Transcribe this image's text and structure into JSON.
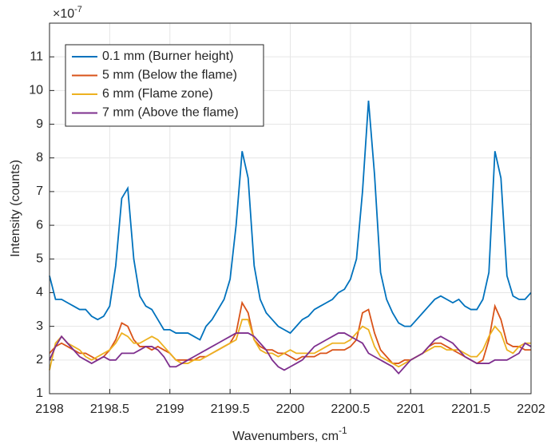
{
  "chart_data": {
    "type": "line",
    "xlabel": "Wavenumbers, cm",
    "xlabel_superscript": "-1",
    "ylabel": "Intensity (counts)",
    "y_multiplier": "×10",
    "y_multiplier_exponent": "-7",
    "xlim": [
      2198,
      2202
    ],
    "xticks": [
      2198,
      2198.5,
      2199,
      2199.5,
      2200,
      2200.5,
      2201,
      2201.5,
      2202
    ],
    "ylim": [
      1,
      12
    ],
    "yticks": [
      1,
      2,
      3,
      4,
      5,
      6,
      7,
      8,
      9,
      10,
      11
    ],
    "grid": true,
    "legend": "top-left",
    "x": [
      2198,
      2198.05,
      2198.1,
      2198.15,
      2198.2,
      2198.25,
      2198.3,
      2198.35,
      2198.4,
      2198.45,
      2198.5,
      2198.55,
      2198.6,
      2198.65,
      2198.7,
      2198.75,
      2198.8,
      2198.85,
      2198.9,
      2198.95,
      2199,
      2199.05,
      2199.1,
      2199.15,
      2199.2,
      2199.25,
      2199.3,
      2199.35,
      2199.4,
      2199.45,
      2199.5,
      2199.55,
      2199.6,
      2199.65,
      2199.7,
      2199.75,
      2199.8,
      2199.85,
      2199.9,
      2199.95,
      2200,
      2200.05,
      2200.1,
      2200.15,
      2200.2,
      2200.25,
      2200.3,
      2200.35,
      2200.4,
      2200.45,
      2200.5,
      2200.55,
      2200.6,
      2200.65,
      2200.7,
      2200.75,
      2200.8,
      2200.85,
      2200.9,
      2200.95,
      2201,
      2201.05,
      2201.1,
      2201.15,
      2201.2,
      2201.25,
      2201.3,
      2201.35,
      2201.4,
      2201.45,
      2201.5,
      2201.55,
      2201.6,
      2201.65,
      2201.7,
      2201.75,
      2201.8,
      2201.85,
      2201.9,
      2201.95,
      2202
    ],
    "series": [
      {
        "name": "0.1 mm (Burner height)",
        "color": "#0072bd",
        "values": [
          4.5,
          3.8,
          3.8,
          3.7,
          3.6,
          3.5,
          3.5,
          3.3,
          3.2,
          3.3,
          3.6,
          4.8,
          6.8,
          7.1,
          5.0,
          3.9,
          3.6,
          3.5,
          3.2,
          2.9,
          2.9,
          2.8,
          2.8,
          2.8,
          2.7,
          2.6,
          3.0,
          3.2,
          3.5,
          3.8,
          4.4,
          6.0,
          8.2,
          7.4,
          4.8,
          3.8,
          3.4,
          3.2,
          3.0,
          2.9,
          2.8,
          3.0,
          3.2,
          3.3,
          3.5,
          3.6,
          3.7,
          3.8,
          4.0,
          4.1,
          4.4,
          5.0,
          7.0,
          9.7,
          7.5,
          4.6,
          3.8,
          3.4,
          3.1,
          3.0,
          3.0,
          3.2,
          3.4,
          3.6,
          3.8,
          3.9,
          3.8,
          3.7,
          3.8,
          3.6,
          3.5,
          3.5,
          3.8,
          4.6,
          8.2,
          7.4,
          4.5,
          3.9,
          3.8,
          3.8,
          4.0
        ]
      },
      {
        "name": "5 mm (Below the flame)",
        "color": "#d95319",
        "values": [
          2.2,
          2.4,
          2.5,
          2.4,
          2.3,
          2.2,
          2.2,
          2.1,
          2.0,
          2.1,
          2.3,
          2.6,
          3.1,
          3.0,
          2.6,
          2.4,
          2.4,
          2.3,
          2.4,
          2.3,
          2.2,
          2.0,
          2.0,
          2.0,
          2.0,
          2.1,
          2.1,
          2.2,
          2.3,
          2.4,
          2.5,
          2.8,
          3.7,
          3.4,
          2.6,
          2.4,
          2.3,
          2.3,
          2.2,
          2.2,
          2.1,
          2.0,
          2.1,
          2.1,
          2.1,
          2.2,
          2.2,
          2.3,
          2.3,
          2.3,
          2.4,
          2.6,
          3.4,
          3.5,
          2.8,
          2.3,
          2.1,
          1.9,
          1.9,
          2.0,
          2.0,
          2.1,
          2.2,
          2.4,
          2.5,
          2.5,
          2.4,
          2.3,
          2.2,
          2.1,
          2.0,
          1.9,
          2.0,
          2.6,
          3.6,
          3.2,
          2.5,
          2.4,
          2.4,
          2.3,
          2.3
        ]
      },
      {
        "name": "6 mm (Flame zone)",
        "color": "#edb120",
        "values": [
          1.7,
          2.5,
          2.7,
          2.5,
          2.4,
          2.3,
          2.1,
          2.0,
          2.1,
          2.2,
          2.3,
          2.5,
          2.8,
          2.7,
          2.5,
          2.5,
          2.6,
          2.7,
          2.6,
          2.4,
          2.2,
          2.0,
          1.9,
          1.9,
          2.0,
          2.0,
          2.1,
          2.2,
          2.3,
          2.4,
          2.5,
          2.6,
          3.2,
          3.2,
          2.6,
          2.3,
          2.2,
          2.2,
          2.1,
          2.2,
          2.3,
          2.2,
          2.2,
          2.2,
          2.2,
          2.3,
          2.4,
          2.5,
          2.5,
          2.5,
          2.6,
          2.8,
          3.0,
          2.9,
          2.4,
          2.1,
          2.0,
          1.9,
          1.8,
          1.9,
          2.0,
          2.1,
          2.2,
          2.3,
          2.4,
          2.4,
          2.3,
          2.3,
          2.3,
          2.2,
          2.1,
          2.1,
          2.3,
          2.7,
          3.0,
          2.8,
          2.3,
          2.2,
          2.4,
          2.5,
          2.5
        ]
      },
      {
        "name": "7 mm (Above the flame)",
        "color": "#7e2f8e",
        "values": [
          2.0,
          2.4,
          2.7,
          2.5,
          2.3,
          2.1,
          2.0,
          1.9,
          2.0,
          2.1,
          2.0,
          2.0,
          2.2,
          2.2,
          2.2,
          2.3,
          2.4,
          2.4,
          2.3,
          2.1,
          1.8,
          1.8,
          1.9,
          2.0,
          2.1,
          2.2,
          2.3,
          2.4,
          2.5,
          2.6,
          2.7,
          2.8,
          2.8,
          2.8,
          2.7,
          2.5,
          2.3,
          2.0,
          1.8,
          1.7,
          1.8,
          1.9,
          2.0,
          2.2,
          2.4,
          2.5,
          2.6,
          2.7,
          2.8,
          2.8,
          2.7,
          2.6,
          2.5,
          2.2,
          2.1,
          2.0,
          1.9,
          1.8,
          1.6,
          1.8,
          2.0,
          2.1,
          2.2,
          2.4,
          2.6,
          2.7,
          2.6,
          2.5,
          2.3,
          2.1,
          2.0,
          1.9,
          1.9,
          1.9,
          2.0,
          2.0,
          2.0,
          2.1,
          2.2,
          2.5,
          2.4
        ]
      }
    ]
  }
}
